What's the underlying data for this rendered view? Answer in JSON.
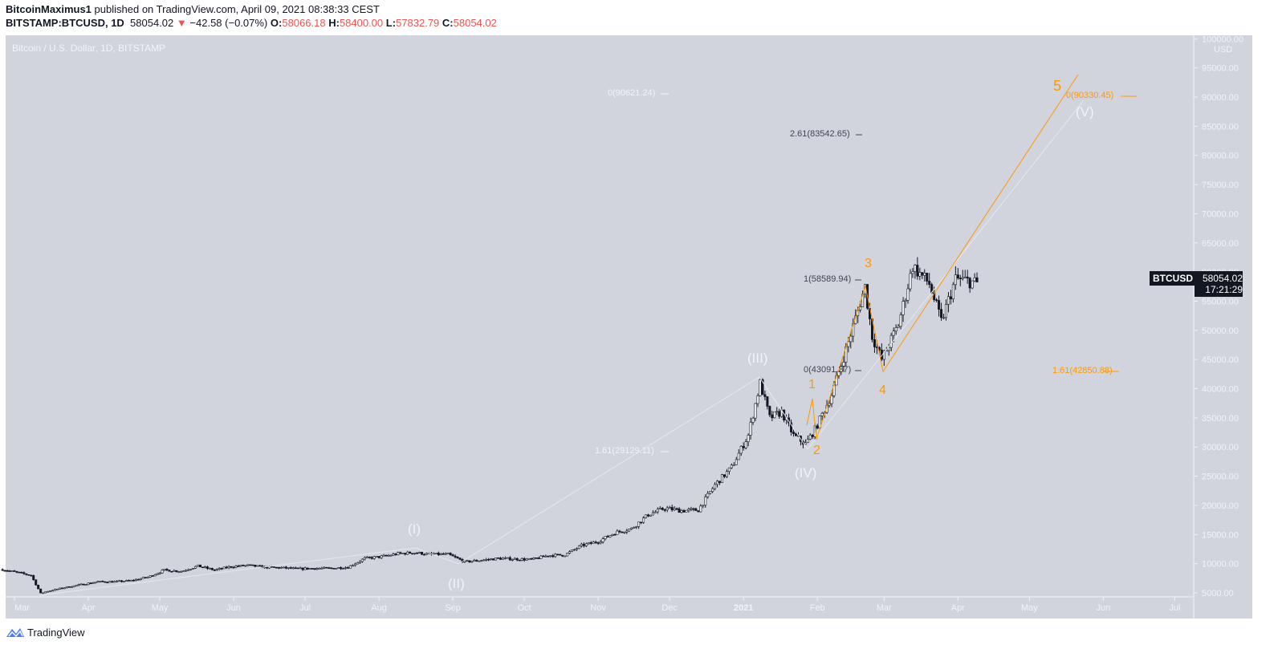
{
  "header": {
    "author": "BitcoinMaximus1",
    "published": "published on TradingView.com, April 09, 2021 08:38:33 CEST",
    "symbol": "BITSTAMP:BTCUSD, 1D",
    "last": "58054.02",
    "change": "−42.58 (−0.07%)",
    "o_label": "O:",
    "o": "58066.18",
    "h_label": "H:",
    "h": "58400.00",
    "l_label": "L:",
    "l": "57832.79",
    "c_label": "C:",
    "c": "58054.02"
  },
  "chart_title": "Bitcoin / U.S. Dollar, 1D, BITSTAMP",
  "price_tag": {
    "symbol": "BTCUSD",
    "price": "58054.02",
    "countdown": "17:21:29"
  },
  "axis_unit": "USD",
  "colors": {
    "background": "#d1d4dc",
    "orange": "#ff9800",
    "candle_up": "#ffffff",
    "candle_down": "#131722",
    "down_arrow": "#ef5350"
  },
  "annotations": {
    "fib_white_top": "0(90621.24)",
    "fib_261": "2.61(83542.65)",
    "fib_1": "1(58589.94)",
    "fib_0": "0(43091.37)",
    "fib_white_161": "1.61(29129.11)",
    "fib_orange_0": "0(90330.45)",
    "fib_orange_161": "1.61(42850.88)",
    "wave_I": "(I)",
    "wave_II": "(II)",
    "wave_III": "(III)",
    "wave_IV": "(IV)",
    "wave_V": "(V)",
    "sub_1": "1",
    "sub_2": "2",
    "sub_3": "3",
    "sub_4": "4",
    "sub_5": "5"
  },
  "footer": {
    "brand": "TradingView"
  },
  "chart_data": {
    "type": "candlestick",
    "title": "Bitcoin / U.S. Dollar, 1D, BITSTAMP",
    "ylim": [
      5000,
      100000
    ],
    "yscale": "linear",
    "grid": false,
    "yticks": [
      "100000.00",
      "95000.00",
      "90000.00",
      "85000.00",
      "80000.00",
      "75000.00",
      "70000.00",
      "65000.00",
      "60000.00",
      "55000.00",
      "50000.00",
      "45000.00",
      "40000.00",
      "35000.00",
      "30000.00",
      "25000.00",
      "20000.00",
      "15000.00",
      "10000.00",
      "5000.00"
    ],
    "xticks": [
      {
        "label": "Mar",
        "date": "2020-03-01"
      },
      {
        "label": "Apr",
        "date": "2020-04-01"
      },
      {
        "label": "May",
        "date": "2020-05-01"
      },
      {
        "label": "Jun",
        "date": "2020-06-01"
      },
      {
        "label": "Jul",
        "date": "2020-07-01"
      },
      {
        "label": "Aug",
        "date": "2020-08-01"
      },
      {
        "label": "Sep",
        "date": "2020-09-01"
      },
      {
        "label": "Oct",
        "date": "2020-10-01"
      },
      {
        "label": "Nov",
        "date": "2020-11-01"
      },
      {
        "label": "Dec",
        "date": "2020-12-01"
      },
      {
        "label": "2021",
        "date": "2021-01-01"
      },
      {
        "label": "Feb",
        "date": "2021-02-01"
      },
      {
        "label": "Mar",
        "date": "2021-03-01"
      },
      {
        "label": "Apr",
        "date": "2021-04-01"
      },
      {
        "label": "May",
        "date": "2021-05-01"
      },
      {
        "label": "Jun",
        "date": "2021-06-01"
      },
      {
        "label": "Jul",
        "date": "2021-07-01"
      }
    ],
    "approx_closes": [
      [
        "2020-02-25",
        9000
      ],
      [
        "2020-03-08",
        8000
      ],
      [
        "2020-03-12",
        4900
      ],
      [
        "2020-03-15",
        5300
      ],
      [
        "2020-03-22",
        5900
      ],
      [
        "2020-03-29",
        6400
      ],
      [
        "2020-04-05",
        6900
      ],
      [
        "2020-04-12",
        6900
      ],
      [
        "2020-04-19",
        7100
      ],
      [
        "2020-04-26",
        7700
      ],
      [
        "2020-05-03",
        8900
      ],
      [
        "2020-05-10",
        8700
      ],
      [
        "2020-05-17",
        9600
      ],
      [
        "2020-05-24",
        8900
      ],
      [
        "2020-05-31",
        9500
      ],
      [
        "2020-06-07",
        9700
      ],
      [
        "2020-06-14",
        9400
      ],
      [
        "2020-06-21",
        9300
      ],
      [
        "2020-06-28",
        9100
      ],
      [
        "2020-07-05",
        9200
      ],
      [
        "2020-07-12",
        9200
      ],
      [
        "2020-07-19",
        9400
      ],
      [
        "2020-07-26",
        10900
      ],
      [
        "2020-08-02",
        11200
      ],
      [
        "2020-08-09",
        11700
      ],
      [
        "2020-08-16",
        11900
      ],
      [
        "2020-08-23",
        11600
      ],
      [
        "2020-08-30",
        11600
      ],
      [
        "2020-09-06",
        10300
      ],
      [
        "2020-09-13",
        10600
      ],
      [
        "2020-09-20",
        10900
      ],
      [
        "2020-09-27",
        10800
      ],
      [
        "2020-10-04",
        10700
      ],
      [
        "2020-10-11",
        11400
      ],
      [
        "2020-10-18",
        11500
      ],
      [
        "2020-10-25",
        13100
      ],
      [
        "2020-11-01",
        13800
      ],
      [
        "2020-11-08",
        15300
      ],
      [
        "2020-11-15",
        16000
      ],
      [
        "2020-11-22",
        18400
      ],
      [
        "2020-11-29",
        19500
      ],
      [
        "2020-12-06",
        19100
      ],
      [
        "2020-12-13",
        19200
      ],
      [
        "2020-12-20",
        23500
      ],
      [
        "2020-12-27",
        26500
      ],
      [
        "2021-01-03",
        32000
      ],
      [
        "2021-01-08",
        41000
      ],
      [
        "2021-01-12",
        35000
      ],
      [
        "2021-01-17",
        36000
      ],
      [
        "2021-01-22",
        32000
      ],
      [
        "2021-01-27",
        30500
      ],
      [
        "2021-01-31",
        33000
      ],
      [
        "2021-02-07",
        39000
      ],
      [
        "2021-02-14",
        48000
      ],
      [
        "2021-02-21",
        57500
      ],
      [
        "2021-02-24",
        49000
      ],
      [
        "2021-02-28",
        45000
      ],
      [
        "2021-03-07",
        51000
      ],
      [
        "2021-03-13",
        61000
      ],
      [
        "2021-03-20",
        58000
      ],
      [
        "2021-03-25",
        51500
      ],
      [
        "2021-03-31",
        58800
      ],
      [
        "2021-04-05",
        58500
      ],
      [
        "2021-04-09",
        58054.02
      ]
    ]
  }
}
